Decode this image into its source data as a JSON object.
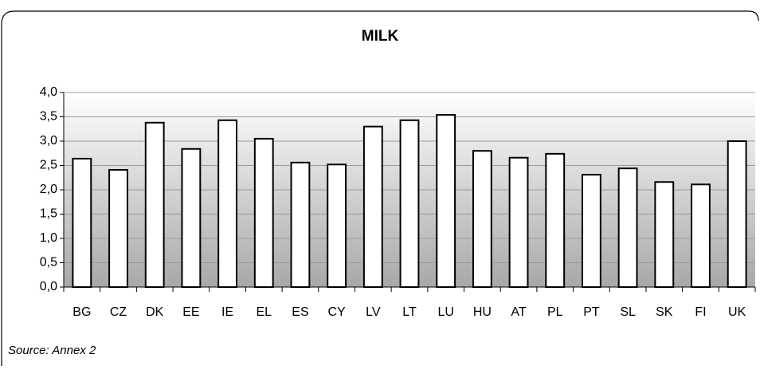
{
  "chart_data": {
    "type": "bar",
    "title": "MILK",
    "source": "Source: Annex 2",
    "categories": [
      "BG",
      "CZ",
      "DK",
      "EE",
      "IE",
      "EL",
      "ES",
      "CY",
      "LV",
      "LT",
      "LU",
      "HU",
      "AT",
      "PL",
      "PT",
      "SL",
      "SK",
      "FI",
      "UK"
    ],
    "values": [
      2.64,
      2.41,
      3.38,
      2.84,
      3.43,
      3.05,
      2.56,
      2.52,
      3.3,
      3.43,
      3.54,
      2.8,
      2.66,
      2.74,
      2.31,
      2.44,
      2.16,
      2.11,
      3.0
    ],
    "color": "#ffffff",
    "ylim": [
      0,
      4
    ],
    "yticks": [
      {
        "value": 0,
        "label": "0,0"
      },
      {
        "value": 0.5,
        "label": "0,5"
      },
      {
        "value": 1,
        "label": "1,0"
      },
      {
        "value": 1.5,
        "label": "1,5"
      },
      {
        "value": 2,
        "label": "2,0"
      },
      {
        "value": 2.5,
        "label": "2,5"
      },
      {
        "value": 3,
        "label": "3,0"
      },
      {
        "value": 3.5,
        "label": "3,5"
      },
      {
        "value": 4,
        "label": "4,0"
      }
    ],
    "grid": true
  }
}
